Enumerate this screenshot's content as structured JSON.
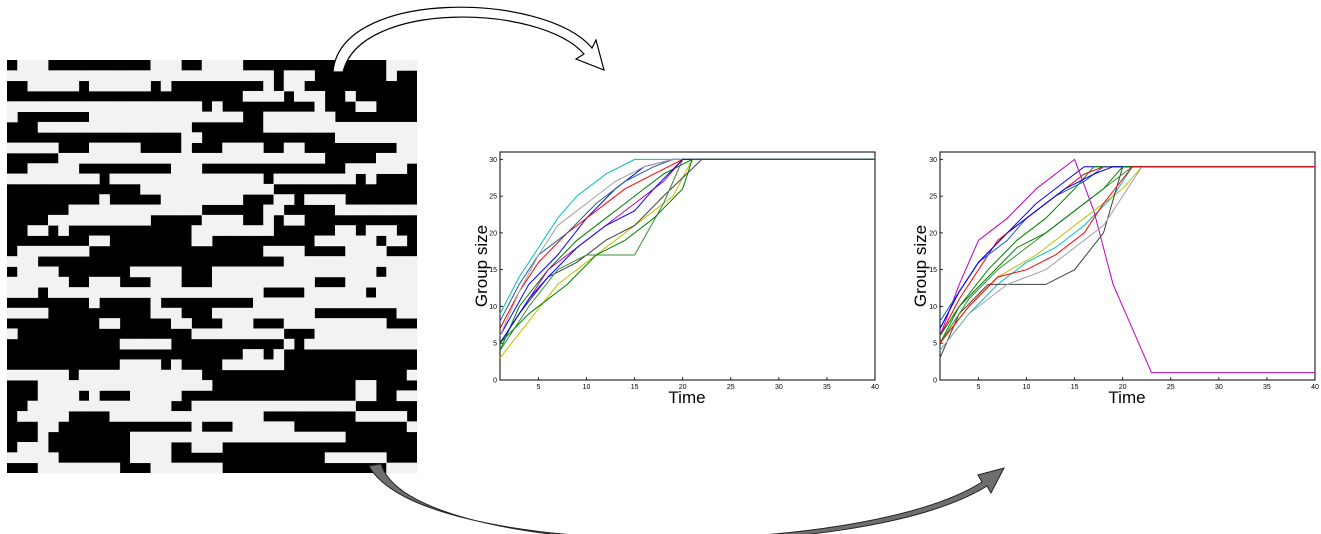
{
  "colors": {
    "matrix_cell_light": "#f2f2f2",
    "matrix_cell_dark": "#000000",
    "arrow_top_fill": "#ffffff",
    "arrow_bottom_fill": "#6e6e6e",
    "series": [
      "#0000ff",
      "#008000",
      "#ff0000",
      "#00bfbf",
      "#bf00bf",
      "#bfbf00",
      "#404040",
      "#1f5fa0",
      "#3c8c3c",
      "#a0a0a0"
    ]
  },
  "matrix": {
    "rows": 40,
    "cols": 40,
    "light_fraction": 0.42,
    "seed": 7
  },
  "chart_data": [
    {
      "type": "line",
      "title": "",
      "xlabel": "Time",
      "ylabel": "Group size",
      "xlim": [
        1,
        40
      ],
      "ylim": [
        0,
        31
      ],
      "xticks": [
        5,
        10,
        15,
        20,
        25,
        30,
        35,
        40
      ],
      "yticks": [
        0,
        5,
        10,
        15,
        20,
        25,
        30
      ],
      "series": [
        {
          "x": [
            1,
            4,
            7,
            10,
            13,
            16,
            19,
            22,
            40
          ],
          "y": [
            6,
            13,
            17,
            22,
            26,
            29,
            30,
            30,
            30
          ]
        },
        {
          "x": [
            1,
            3,
            6,
            9,
            12,
            15,
            18,
            21,
            40
          ],
          "y": [
            4,
            10,
            15,
            19,
            22,
            25,
            28,
            30,
            30
          ]
        },
        {
          "x": [
            1,
            3,
            5,
            8,
            11,
            14,
            17,
            20,
            40
          ],
          "y": [
            7,
            12,
            16,
            20,
            23,
            26,
            28,
            30,
            30
          ]
        },
        {
          "x": [
            1,
            3,
            5,
            7,
            9,
            12,
            15,
            40
          ],
          "y": [
            9,
            14,
            18,
            22,
            25,
            28,
            30,
            30
          ]
        },
        {
          "x": [
            1,
            4,
            6,
            9,
            12,
            15,
            18,
            20,
            40
          ],
          "y": [
            5,
            11,
            15,
            18,
            21,
            24,
            27,
            30,
            30
          ]
        },
        {
          "x": [
            1,
            4,
            7,
            10,
            13,
            16,
            19,
            21,
            40
          ],
          "y": [
            3,
            8,
            13,
            16,
            19,
            22,
            25,
            30,
            30
          ]
        },
        {
          "x": [
            1,
            3,
            6,
            9,
            12,
            15,
            18,
            22,
            40
          ],
          "y": [
            5,
            9,
            14,
            16,
            19,
            21,
            25,
            30,
            30
          ]
        },
        {
          "x": [
            1,
            3,
            5,
            8,
            11,
            14,
            17,
            19,
            40
          ],
          "y": [
            8,
            13,
            17,
            20,
            24,
            27,
            29,
            30,
            30
          ]
        },
        {
          "x": [
            1,
            4,
            7,
            10,
            13,
            15,
            18,
            20,
            40
          ],
          "y": [
            4,
            10,
            15,
            17,
            17,
            17,
            24,
            30,
            30
          ]
        },
        {
          "x": [
            1,
            3,
            5,
            7,
            10,
            13,
            16,
            19,
            40
          ],
          "y": [
            6,
            12,
            17,
            21,
            24,
            27,
            29,
            30,
            30
          ]
        },
        {
          "x": [
            1,
            4,
            6,
            9,
            12,
            15,
            17,
            20,
            40
          ],
          "y": [
            5,
            11,
            14,
            18,
            21,
            23,
            26,
            30,
            30
          ]
        },
        {
          "x": [
            1,
            4,
            8,
            11,
            14,
            17,
            20,
            21,
            40
          ],
          "y": [
            5,
            9,
            13,
            17,
            19,
            22,
            26,
            30,
            30
          ]
        }
      ]
    },
    {
      "type": "line",
      "title": "",
      "xlabel": "Time",
      "ylabel": "Group size",
      "xlim": [
        1,
        40
      ],
      "ylim": [
        0,
        31
      ],
      "xticks": [
        5,
        10,
        15,
        20,
        25,
        30,
        35,
        40
      ],
      "yticks": [
        0,
        5,
        10,
        15,
        20,
        25,
        30
      ],
      "series": [
        {
          "x": [
            1,
            3,
            5,
            8,
            11,
            14,
            16,
            40
          ],
          "y": [
            7,
            12,
            16,
            20,
            24,
            27,
            29,
            29
          ]
        },
        {
          "x": [
            1,
            3,
            6,
            9,
            12,
            15,
            17,
            40
          ],
          "y": [
            5,
            10,
            15,
            19,
            22,
            26,
            29,
            29
          ]
        },
        {
          "x": [
            1,
            3,
            5,
            7,
            10,
            13,
            16,
            18,
            40
          ],
          "y": [
            6,
            11,
            15,
            19,
            22,
            25,
            28,
            29,
            29
          ]
        },
        {
          "x": [
            1,
            4,
            7,
            10,
            13,
            16,
            19,
            21,
            40
          ],
          "y": [
            4,
            9,
            13,
            16,
            18,
            21,
            25,
            29,
            29
          ]
        },
        {
          "x": [
            1,
            3,
            5,
            8,
            11,
            15,
            17,
            19,
            23,
            40
          ],
          "y": [
            6,
            13,
            19,
            22,
            26,
            30,
            23,
            13,
            1,
            1
          ]
        },
        {
          "x": [
            1,
            4,
            7,
            11,
            14,
            17,
            20,
            22,
            40
          ],
          "y": [
            5,
            10,
            14,
            17,
            20,
            23,
            26,
            29,
            29
          ]
        },
        {
          "x": [
            1,
            3,
            6,
            9,
            12,
            15,
            18,
            20,
            40
          ],
          "y": [
            3,
            9,
            13,
            13,
            13,
            15,
            20,
            29,
            29
          ]
        },
        {
          "x": [
            1,
            3,
            5,
            8,
            10,
            13,
            16,
            18,
            40
          ],
          "y": [
            8,
            12,
            16,
            19,
            22,
            25,
            27,
            29,
            29
          ]
        },
        {
          "x": [
            1,
            4,
            7,
            10,
            13,
            16,
            19,
            21,
            40
          ],
          "y": [
            5,
            11,
            15,
            18,
            21,
            24,
            27,
            29,
            29
          ]
        },
        {
          "x": [
            1,
            4,
            8,
            12,
            15,
            18,
            20,
            22,
            40
          ],
          "y": [
            4,
            9,
            13,
            15,
            18,
            21,
            25,
            29,
            29
          ]
        },
        {
          "x": [
            1,
            3,
            5,
            8,
            11,
            14,
            17,
            19,
            40
          ],
          "y": [
            7,
            12,
            16,
            20,
            23,
            26,
            28,
            29,
            29
          ]
        },
        {
          "x": [
            1,
            3,
            6,
            9,
            12,
            15,
            18,
            20,
            40
          ],
          "y": [
            6,
            10,
            14,
            18,
            20,
            23,
            26,
            29,
            29
          ]
        },
        {
          "x": [
            1,
            4,
            7,
            10,
            13,
            16,
            18,
            21,
            40
          ],
          "y": [
            5,
            10,
            14,
            15,
            17,
            20,
            24,
            29,
            29
          ]
        }
      ]
    }
  ]
}
